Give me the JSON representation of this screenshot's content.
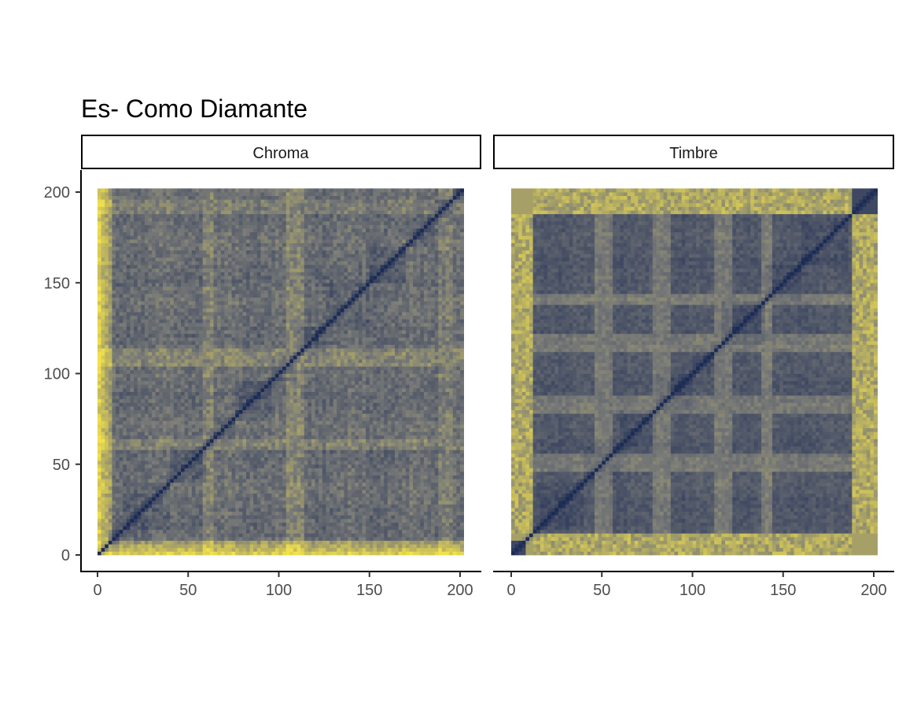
{
  "chart_data": {
    "type": "heatmap",
    "title": "Es- Como Diamante",
    "xlabel": "",
    "ylabel": "",
    "xlim": [
      0,
      202
    ],
    "ylim": [
      0,
      202
    ],
    "x_ticks": [
      "0",
      "50",
      "100",
      "150",
      "200"
    ],
    "y_ticks": [
      "0",
      "50",
      "100",
      "150",
      "200"
    ],
    "grid": false,
    "colors": {
      "low": "#1c2b55",
      "mid": "#7b7c78",
      "high": "#f2e14b"
    },
    "panels": [
      {
        "name": "Chroma",
        "segment_boundaries": [
          0,
          6,
          14,
          40,
          60,
          75,
          95,
          110,
          125,
          150,
          170,
          186,
          196,
          202
        ],
        "diagonal": true,
        "structure": "self-similarity matrix; high distance (yellow) bands near x,y < 10 and along y < 8 at bottom; darker blue interior with yellowish columns near 60, 105-110, 190"
      },
      {
        "name": "Timbre",
        "segment_boundaries": [
          0,
          8,
          14,
          40,
          60,
          80,
          100,
          115,
          140,
          160,
          186,
          202
        ],
        "diagonal": true,
        "structure": "self-similarity matrix; strong yellow borders for x < 12, x > 186, y < 12, y > 186; dark blue blocks in interior with grey/yellow cross bands near 50, 80, 115"
      }
    ]
  }
}
